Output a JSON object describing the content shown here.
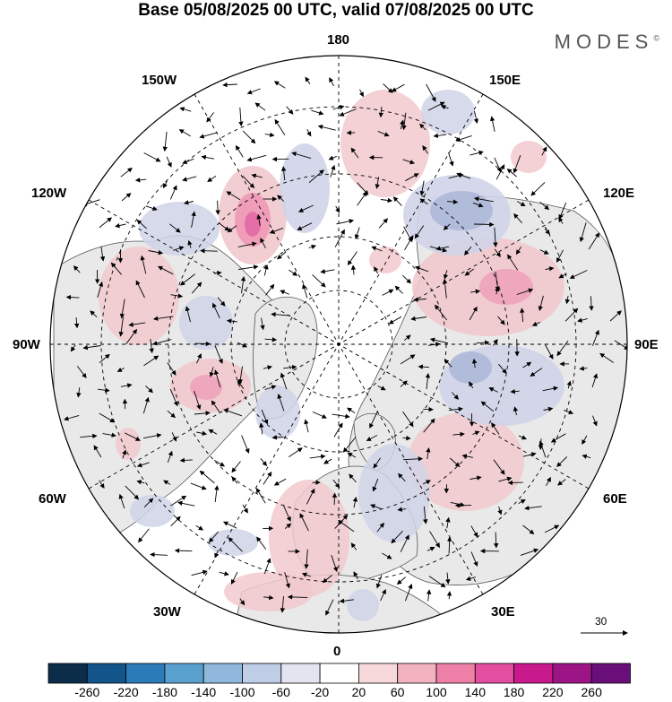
{
  "title": "Base 05/08/2025 00 UTC, valid 07/08/2025 00 UTC",
  "logo": "MODES",
  "logo_mark": "©",
  "meridian_labels": {
    "top": "180",
    "bottom": "0",
    "left": "90W",
    "right": "90E",
    "upper_left_1": "150W",
    "upper_left_2": "120W",
    "lower_left_1": "60W",
    "lower_left_2": "30W",
    "upper_right_1": "150E",
    "upper_right_2": "120E",
    "lower_right_1": "60E",
    "lower_right_2": "30E"
  },
  "reference_vector": "30",
  "colorbar": {
    "ticks": [
      "-260",
      "-220",
      "-180",
      "-140",
      "-100",
      "-60",
      "-20",
      "20",
      "60",
      "100",
      "140",
      "180",
      "220",
      "260"
    ],
    "colors": [
      "#0c2d4a",
      "#13548a",
      "#2b7bb8",
      "#5aa0cf",
      "#8fb8dc",
      "#bfcde6",
      "#e4e4f1",
      "#ffffff",
      "#f7d9dc",
      "#f3b2bf",
      "#ee80a8",
      "#e34ea1",
      "#c81a8c",
      "#9d1487",
      "#6a0f7a"
    ]
  },
  "anomaly_colors": {
    "positive": "#f1c9ce",
    "positive_strong": "#ef9db8",
    "positive_max": "#e46fa6",
    "negative": "#d0d4e8",
    "negative_strong": "#a9b4d6"
  }
}
